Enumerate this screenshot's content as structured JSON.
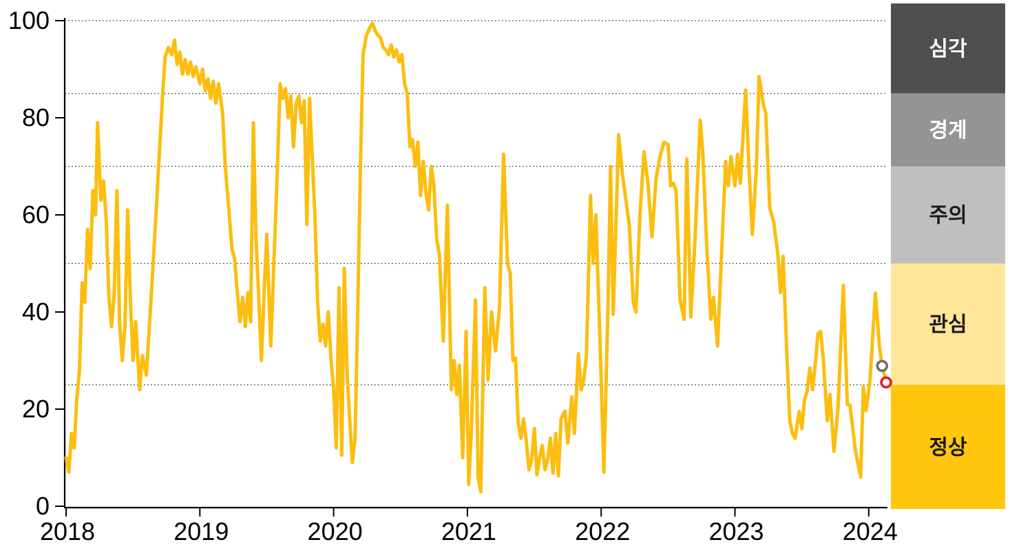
{
  "chart_data": {
    "type": "line",
    "title": "",
    "x_axis": {
      "tick_labels": [
        "2018",
        "2019",
        "2020",
        "2021",
        "2022",
        "2023",
        "2024"
      ],
      "tick_values": [
        2018,
        2019,
        2020,
        2021,
        2022,
        2023,
        2024
      ],
      "range": [
        2018,
        2024.25
      ]
    },
    "y_axis": {
      "tick_labels": [
        "0",
        "20",
        "40",
        "60",
        "80",
        "100"
      ],
      "tick_values": [
        0,
        20,
        40,
        60,
        80,
        100
      ],
      "range": [
        0,
        100
      ],
      "gridlines": [
        25,
        50,
        70,
        85,
        100
      ],
      "grid_style": "dotted"
    },
    "legend_zones": [
      {
        "label": "심각",
        "from": 85,
        "to": 100,
        "color": "#4F4F4F",
        "text_color": "#FFFFFF"
      },
      {
        "label": "경계",
        "from": 70,
        "to": 85,
        "color": "#949494",
        "text_color": "#FFFFFF"
      },
      {
        "label": "주의",
        "from": 50,
        "to": 70,
        "color": "#BFBFBF",
        "text_color": "#1A1A1A"
      },
      {
        "label": "관심",
        "from": 25,
        "to": 50,
        "color": "#FFE699",
        "text_color": "#1A1A1A"
      },
      {
        "label": "정상",
        "from": 0,
        "to": 25,
        "color": "#FFC60B",
        "text_color": "#1A1A1A"
      }
    ],
    "series": [
      {
        "name": "index-line",
        "color": "#FBBE10",
        "points": [
          [
            2018.0,
            10
          ],
          [
            2018.02,
            7
          ],
          [
            2018.04,
            15
          ],
          [
            2018.06,
            12
          ],
          [
            2018.08,
            22
          ],
          [
            2018.1,
            28
          ],
          [
            2018.12,
            46
          ],
          [
            2018.14,
            42
          ],
          [
            2018.16,
            57
          ],
          [
            2018.18,
            49
          ],
          [
            2018.2,
            65
          ],
          [
            2018.22,
            60
          ],
          [
            2018.235,
            79
          ],
          [
            2018.26,
            63
          ],
          [
            2018.28,
            67
          ],
          [
            2018.3,
            59
          ],
          [
            2018.32,
            43
          ],
          [
            2018.34,
            37
          ],
          [
            2018.36,
            44
          ],
          [
            2018.38,
            65
          ],
          [
            2018.4,
            38
          ],
          [
            2018.42,
            30
          ],
          [
            2018.44,
            37
          ],
          [
            2018.46,
            61
          ],
          [
            2018.48,
            43
          ],
          [
            2018.5,
            30
          ],
          [
            2018.52,
            38
          ],
          [
            2018.55,
            24
          ],
          [
            2018.57,
            31
          ],
          [
            2018.6,
            27
          ],
          [
            2018.64,
            45
          ],
          [
            2018.68,
            64
          ],
          [
            2018.72,
            84
          ],
          [
            2018.74,
            92.5
          ],
          [
            2018.765,
            94.5
          ],
          [
            2018.79,
            93
          ],
          [
            2018.81,
            96
          ],
          [
            2018.83,
            91
          ],
          [
            2018.85,
            93.5
          ],
          [
            2018.87,
            89
          ],
          [
            2018.89,
            92
          ],
          [
            2018.91,
            89
          ],
          [
            2018.93,
            91.5
          ],
          [
            2018.95,
            88.5
          ],
          [
            2018.97,
            90.5
          ],
          [
            2019.0,
            87
          ],
          [
            2019.02,
            90
          ],
          [
            2019.04,
            85.5
          ],
          [
            2019.06,
            88
          ],
          [
            2019.08,
            84
          ],
          [
            2019.1,
            87.5
          ],
          [
            2019.12,
            83
          ],
          [
            2019.14,
            87
          ],
          [
            2019.17,
            81
          ],
          [
            2019.19,
            70
          ],
          [
            2019.22,
            60
          ],
          [
            2019.24,
            53
          ],
          [
            2019.26,
            51
          ],
          [
            2019.28,
            44
          ],
          [
            2019.3,
            38
          ],
          [
            2019.32,
            43
          ],
          [
            2019.34,
            37
          ],
          [
            2019.36,
            44
          ],
          [
            2019.38,
            38
          ],
          [
            2019.4,
            79
          ],
          [
            2019.42,
            55
          ],
          [
            2019.44,
            43
          ],
          [
            2019.46,
            30
          ],
          [
            2019.48,
            44
          ],
          [
            2019.5,
            56
          ],
          [
            2019.53,
            33
          ],
          [
            2019.56,
            55
          ],
          [
            2019.58,
            70
          ],
          [
            2019.6,
            87
          ],
          [
            2019.62,
            84
          ],
          [
            2019.64,
            86
          ],
          [
            2019.66,
            80
          ],
          [
            2019.68,
            84.5
          ],
          [
            2019.7,
            74
          ],
          [
            2019.72,
            83
          ],
          [
            2019.74,
            84.5
          ],
          [
            2019.76,
            79
          ],
          [
            2019.78,
            83.5
          ],
          [
            2019.8,
            58
          ],
          [
            2019.82,
            84
          ],
          [
            2019.84,
            72
          ],
          [
            2019.86,
            60
          ],
          [
            2019.88,
            42
          ],
          [
            2019.9,
            34
          ],
          [
            2019.92,
            37.5
          ],
          [
            2019.94,
            33
          ],
          [
            2019.96,
            40
          ],
          [
            2019.98,
            30.5
          ],
          [
            2020.0,
            24
          ],
          [
            2020.02,
            12
          ],
          [
            2020.04,
            45
          ],
          [
            2020.06,
            10.5
          ],
          [
            2020.08,
            49
          ],
          [
            2020.1,
            28
          ],
          [
            2020.12,
            18
          ],
          [
            2020.14,
            9
          ],
          [
            2020.16,
            14
          ],
          [
            2020.18,
            40
          ],
          [
            2020.2,
            70
          ],
          [
            2020.22,
            93
          ],
          [
            2020.245,
            97
          ],
          [
            2020.27,
            98.5
          ],
          [
            2020.29,
            99.5
          ],
          [
            2020.31,
            98
          ],
          [
            2020.33,
            97
          ],
          [
            2020.35,
            96.5
          ],
          [
            2020.37,
            94.5
          ],
          [
            2020.39,
            94
          ],
          [
            2020.41,
            93
          ],
          [
            2020.43,
            95
          ],
          [
            2020.45,
            92.5
          ],
          [
            2020.47,
            94
          ],
          [
            2020.49,
            91.5
          ],
          [
            2020.51,
            93
          ],
          [
            2020.53,
            87
          ],
          [
            2020.55,
            85
          ],
          [
            2020.57,
            74
          ],
          [
            2020.59,
            75.5
          ],
          [
            2020.61,
            70
          ],
          [
            2020.63,
            75
          ],
          [
            2020.65,
            64
          ],
          [
            2020.67,
            71
          ],
          [
            2020.69,
            64.5
          ],
          [
            2020.71,
            61
          ],
          [
            2020.73,
            70
          ],
          [
            2020.75,
            66
          ],
          [
            2020.77,
            55
          ],
          [
            2020.79,
            52
          ],
          [
            2020.82,
            34
          ],
          [
            2020.85,
            62
          ],
          [
            2020.88,
            24
          ],
          [
            2020.9,
            30
          ],
          [
            2020.92,
            23
          ],
          [
            2020.94,
            29
          ],
          [
            2020.965,
            10
          ],
          [
            2020.99,
            36
          ],
          [
            2021.01,
            4.5
          ],
          [
            2021.03,
            16
          ],
          [
            2021.06,
            42.5
          ],
          [
            2021.08,
            6
          ],
          [
            2021.1,
            3
          ],
          [
            2021.13,
            45
          ],
          [
            2021.155,
            26
          ],
          [
            2021.18,
            40
          ],
          [
            2021.21,
            32
          ],
          [
            2021.24,
            41
          ],
          [
            2021.27,
            72.5
          ],
          [
            2021.3,
            50
          ],
          [
            2021.32,
            48
          ],
          [
            2021.34,
            30
          ],
          [
            2021.36,
            30.5
          ],
          [
            2021.38,
            17
          ],
          [
            2021.4,
            14
          ],
          [
            2021.42,
            18
          ],
          [
            2021.44,
            13.5
          ],
          [
            2021.46,
            7.5
          ],
          [
            2021.48,
            9.5
          ],
          [
            2021.5,
            16
          ],
          [
            2021.52,
            6.5
          ],
          [
            2021.54,
            10
          ],
          [
            2021.56,
            12.5
          ],
          [
            2021.58,
            7.5
          ],
          [
            2021.6,
            9.7
          ],
          [
            2021.62,
            14
          ],
          [
            2021.64,
            6.8
          ],
          [
            2021.66,
            15
          ],
          [
            2021.68,
            6.3
          ],
          [
            2021.7,
            18
          ],
          [
            2021.73,
            19.6
          ],
          [
            2021.75,
            13
          ],
          [
            2021.78,
            22.5
          ],
          [
            2021.8,
            15
          ],
          [
            2021.83,
            31.4
          ],
          [
            2021.85,
            24
          ],
          [
            2021.87,
            26
          ],
          [
            2021.89,
            31
          ],
          [
            2021.92,
            64
          ],
          [
            2021.94,
            50
          ],
          [
            2021.96,
            60
          ],
          [
            2021.99,
            35
          ],
          [
            2022.02,
            7
          ],
          [
            2022.05,
            40
          ],
          [
            2022.07,
            70
          ],
          [
            2022.09,
            39.5
          ],
          [
            2022.13,
            76.5
          ],
          [
            2022.16,
            68
          ],
          [
            2022.18,
            64
          ],
          [
            2022.21,
            58
          ],
          [
            2022.24,
            42
          ],
          [
            2022.26,
            40
          ],
          [
            2022.29,
            60
          ],
          [
            2022.32,
            73
          ],
          [
            2022.35,
            66.5
          ],
          [
            2022.38,
            55.5
          ],
          [
            2022.41,
            67.5
          ],
          [
            2022.44,
            72
          ],
          [
            2022.47,
            75
          ],
          [
            2022.5,
            74.5
          ],
          [
            2022.52,
            66
          ],
          [
            2022.54,
            66.5
          ],
          [
            2022.56,
            65
          ],
          [
            2022.59,
            42.5
          ],
          [
            2022.62,
            38.5
          ],
          [
            2022.64,
            71.5
          ],
          [
            2022.67,
            39
          ],
          [
            2022.7,
            54
          ],
          [
            2022.74,
            79.5
          ],
          [
            2022.76,
            72.5
          ],
          [
            2022.79,
            53
          ],
          [
            2022.82,
            38.5
          ],
          [
            2022.84,
            43
          ],
          [
            2022.87,
            33
          ],
          [
            2022.9,
            52
          ],
          [
            2022.93,
            71
          ],
          [
            2022.95,
            66
          ],
          [
            2022.97,
            72
          ],
          [
            2023.0,
            66
          ],
          [
            2023.02,
            72.5
          ],
          [
            2023.04,
            66.5
          ],
          [
            2023.08,
            85.7
          ],
          [
            2023.11,
            66.5
          ],
          [
            2023.13,
            56
          ],
          [
            2023.16,
            69.5
          ],
          [
            2023.18,
            88.5
          ],
          [
            2023.21,
            83
          ],
          [
            2023.23,
            81
          ],
          [
            2023.26,
            61.5
          ],
          [
            2023.29,
            58.5
          ],
          [
            2023.32,
            52
          ],
          [
            2023.34,
            44
          ],
          [
            2023.36,
            51.5
          ],
          [
            2023.39,
            30
          ],
          [
            2023.41,
            17.5
          ],
          [
            2023.43,
            15
          ],
          [
            2023.45,
            14
          ],
          [
            2023.48,
            19.5
          ],
          [
            2023.5,
            16
          ],
          [
            2023.52,
            22
          ],
          [
            2023.54,
            23.7
          ],
          [
            2023.56,
            28.5
          ],
          [
            2023.58,
            24
          ],
          [
            2023.6,
            29
          ],
          [
            2023.62,
            35.5
          ],
          [
            2023.64,
            36
          ],
          [
            2023.66,
            30.5
          ],
          [
            2023.69,
            17.6
          ],
          [
            2023.71,
            23
          ],
          [
            2023.74,
            11.3
          ],
          [
            2023.77,
            20
          ],
          [
            2023.81,
            45.5
          ],
          [
            2023.84,
            21
          ],
          [
            2023.86,
            20.8
          ],
          [
            2023.9,
            11.5
          ],
          [
            2023.94,
            6
          ],
          [
            2023.96,
            24.6
          ],
          [
            2023.98,
            19.7
          ],
          [
            2024.01,
            26
          ],
          [
            2024.05,
            43.9
          ],
          [
            2024.08,
            33
          ],
          [
            2024.1,
            28.9
          ],
          [
            2024.13,
            25.5
          ]
        ]
      }
    ],
    "markers": [
      {
        "name": "previous-value-marker",
        "shape": "open-circle",
        "x": 2024.1,
        "y": 28.9,
        "stroke": "#6E6E6E",
        "fill": "#FFFFFF"
      },
      {
        "name": "latest-value-marker",
        "shape": "open-circle",
        "x": 2024.13,
        "y": 25.5,
        "stroke": "#E02020",
        "fill": "#FFFFFF"
      }
    ],
    "layout_hints": {
      "legend_position": "right-band",
      "grid": "horizontal-dotted",
      "axis_color": "#000000"
    }
  }
}
